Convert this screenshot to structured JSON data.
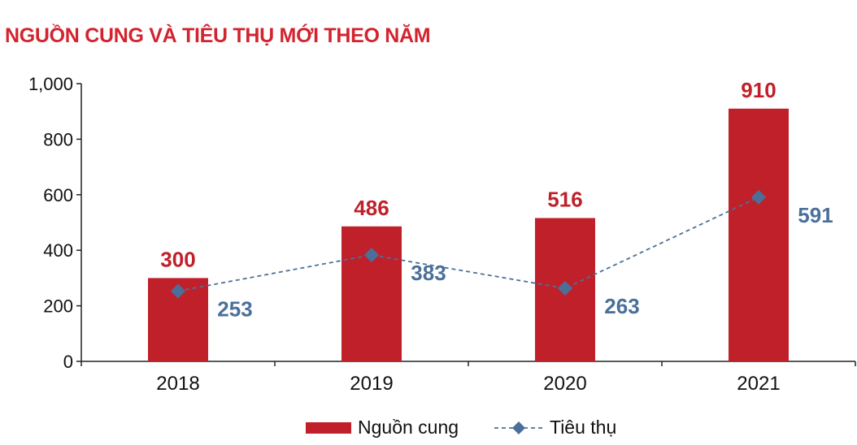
{
  "chart_data": {
    "type": "bar",
    "title": "NGUỒN CUNG VÀ TIÊU THỤ MỚI THEO NĂM",
    "categories": [
      "2018",
      "2019",
      "2020",
      "2021"
    ],
    "series": [
      {
        "name": "Nguồn cung",
        "kind": "bar",
        "values": [
          300,
          486,
          516,
          910
        ],
        "color": "#c0202a"
      },
      {
        "name": "Tiêu thụ",
        "kind": "line",
        "style": "dashed",
        "marker": "diamond",
        "values": [
          253,
          383,
          263,
          591
        ],
        "color": "#4a7099"
      }
    ],
    "bar_labels": [
      "300",
      "486",
      "516",
      "910"
    ],
    "line_labels": [
      "253",
      "383",
      "263",
      "591"
    ],
    "ylim": [
      0,
      1000
    ],
    "yticks": [
      0,
      200,
      400,
      600,
      800,
      1000
    ],
    "ytick_labels": [
      "0",
      "200",
      "400",
      "600",
      "800",
      "1,000"
    ],
    "xlabel": "",
    "ylabel": "",
    "legend": "bottom-center",
    "grid": false
  }
}
